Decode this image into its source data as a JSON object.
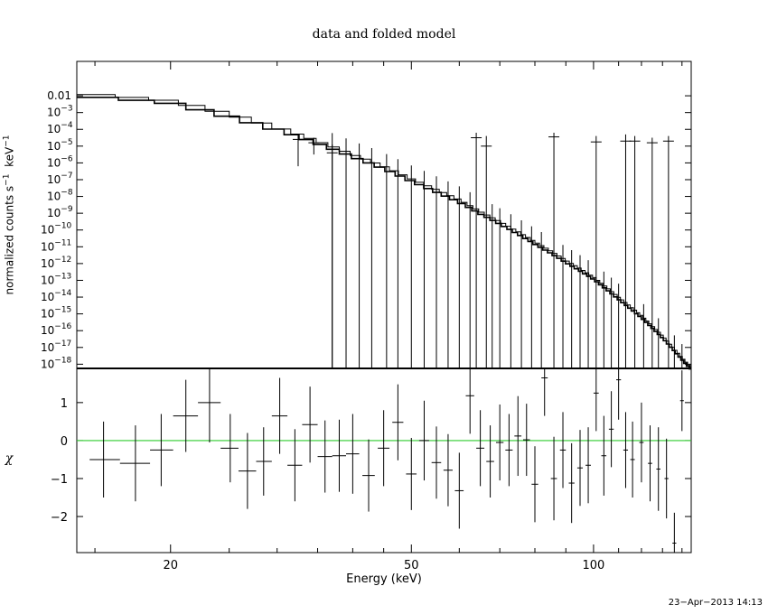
{
  "chart_data": [
    {
      "type": "line",
      "panel": "top",
      "title": "data and folded model",
      "ylabel_main": "normalized counts s",
      "ylabel_sup1": "−1",
      "ylabel_unit": "keV",
      "ylabel_sup2": "−1",
      "yscale": "log",
      "ylim_exp": [
        -18.25,
        0.05
      ],
      "xlim": [
        14.0,
        145.0
      ],
      "xscale": "log",
      "y_ticks": [
        {
          "exp": -2,
          "label": "0.01",
          "sup": ""
        },
        {
          "exp": -3,
          "label": "10",
          "sup": "−3"
        },
        {
          "exp": -4,
          "label": "10",
          "sup": "−4"
        },
        {
          "exp": -5,
          "label": "10",
          "sup": "−5"
        },
        {
          "exp": -6,
          "label": "10",
          "sup": "−6"
        },
        {
          "exp": -7,
          "label": "10",
          "sup": "−7"
        },
        {
          "exp": -8,
          "label": "10",
          "sup": "−8"
        },
        {
          "exp": -9,
          "label": "10",
          "sup": "−9"
        },
        {
          "exp": -10,
          "label": "10",
          "sup": "−10"
        },
        {
          "exp": -11,
          "label": "10",
          "sup": "−11"
        },
        {
          "exp": -12,
          "label": "10",
          "sup": "−12"
        },
        {
          "exp": -13,
          "label": "10",
          "sup": "−13"
        },
        {
          "exp": -14,
          "label": "10",
          "sup": "−14"
        },
        {
          "exp": -15,
          "label": "10",
          "sup": "−15"
        },
        {
          "exp": -16,
          "label": "10",
          "sup": "−16"
        },
        {
          "exp": -17,
          "label": "10",
          "sup": "−17"
        },
        {
          "exp": -18,
          "label": "10",
          "sup": "−18"
        }
      ],
      "model_log10_counts": [
        [
          14.0,
          -1.85
        ],
        [
          20.0,
          -2.3
        ],
        [
          25.0,
          -3.1
        ],
        [
          30.0,
          -3.9
        ],
        [
          35.0,
          -4.7
        ],
        [
          40.0,
          -5.5
        ],
        [
          45.0,
          -6.2
        ],
        [
          50.0,
          -6.95
        ],
        [
          55.0,
          -7.6
        ],
        [
          60.0,
          -8.2
        ],
        [
          65.0,
          -8.9
        ],
        [
          70.0,
          -9.5
        ],
        [
          75.0,
          -10.1
        ],
        [
          80.0,
          -10.7
        ],
        [
          90.0,
          -11.8
        ],
        [
          100.0,
          -12.8
        ],
        [
          110.0,
          -14.0
        ],
        [
          120.0,
          -15.1
        ],
        [
          130.0,
          -16.3
        ],
        [
          140.0,
          -17.6
        ],
        [
          145.0,
          -18.2
        ]
      ],
      "data_points": [
        {
          "e": 32.5,
          "log_y": -4.6,
          "log_lo": -6.2,
          "log_hi": -4.3
        },
        {
          "e": 34.5,
          "log_y": -4.8,
          "log_lo": -5.5,
          "log_hi": -4.5
        },
        {
          "e": 37.0,
          "log_y": -5.4,
          "log_lo": -18.25,
          "log_hi": -4.9
        },
        {
          "e": 64.0,
          "log_y": -4.5,
          "log_lo": -18.25,
          "log_hi": -4.2
        },
        {
          "e": 66.5,
          "log_y": -5.0,
          "log_lo": -18.25,
          "log_hi": -4.4
        },
        {
          "e": 86.0,
          "log_y": -4.45,
          "log_lo": -18.25,
          "log_hi": -4.2
        },
        {
          "e": 101.0,
          "log_y": -4.75,
          "log_lo": -18.25,
          "log_hi": -4.4
        },
        {
          "e": 113.0,
          "log_y": -4.7,
          "log_lo": -18.25,
          "log_hi": -4.3
        },
        {
          "e": 117.0,
          "log_y": -4.7,
          "log_lo": -18.25,
          "log_hi": -4.4
        },
        {
          "e": 125.0,
          "log_y": -4.8,
          "log_lo": -18.25,
          "log_hi": -4.5
        },
        {
          "e": 133.0,
          "log_y": -4.7,
          "log_lo": -18.25,
          "log_hi": -4.4
        }
      ],
      "upper_limit_energies": [
        37,
        39,
        41,
        43,
        45.5,
        47.5,
        50,
        52.5,
        55,
        57.5,
        60,
        62.5,
        68,
        70,
        73,
        76,
        79,
        82,
        89,
        92,
        95,
        98,
        104,
        107,
        110,
        121,
        128,
        136,
        140
      ]
    },
    {
      "type": "scatter",
      "panel": "bottom",
      "ylabel": "χ",
      "xlabel": "Energy (keV)",
      "xscale": "log",
      "xlim": [
        14.0,
        145.0
      ],
      "ylim": [
        -2.95,
        1.9
      ],
      "y_ticks": [
        {
          "v": 1,
          "label": "1"
        },
        {
          "v": 0,
          "label": "0"
        },
        {
          "v": -1,
          "label": "−1"
        },
        {
          "v": -2,
          "label": "−2"
        }
      ],
      "x_ticks": [
        {
          "v": 20,
          "label": "20"
        },
        {
          "v": 50,
          "label": "50"
        },
        {
          "v": 100,
          "label": "100"
        }
      ],
      "zero_line_color": "#2ecc2e",
      "points": [
        {
          "e": 15.5,
          "lo": 14.7,
          "hi": 16.5,
          "y": -0.5,
          "err": 1.0
        },
        {
          "e": 17.5,
          "lo": 16.5,
          "hi": 18.5,
          "y": -0.6,
          "err": 1.0
        },
        {
          "e": 19.3,
          "lo": 18.5,
          "hi": 20.2,
          "y": -0.25,
          "err": 0.95
        },
        {
          "e": 21.2,
          "lo": 20.2,
          "hi": 22.2,
          "y": 0.65,
          "err": 0.95
        },
        {
          "e": 23.2,
          "lo": 22.2,
          "hi": 24.2,
          "y": 1.0,
          "err": 1.05
        },
        {
          "e": 25.1,
          "lo": 24.2,
          "hi": 25.9,
          "y": -0.2,
          "err": 0.9
        },
        {
          "e": 26.8,
          "lo": 25.9,
          "hi": 27.7,
          "y": -0.8,
          "err": 1.0
        },
        {
          "e": 28.5,
          "lo": 27.7,
          "hi": 29.4,
          "y": -0.55,
          "err": 0.9
        },
        {
          "e": 30.3,
          "lo": 29.4,
          "hi": 31.2,
          "y": 0.65,
          "err": 1.0
        },
        {
          "e": 32.1,
          "lo": 31.2,
          "hi": 33.0,
          "y": -0.65,
          "err": 0.95
        },
        {
          "e": 34.0,
          "lo": 33.0,
          "hi": 35.0,
          "y": 0.42,
          "err": 1.0
        },
        {
          "e": 36.0,
          "lo": 35.0,
          "hi": 37.0,
          "y": -0.42,
          "err": 0.95
        },
        {
          "e": 38.0,
          "lo": 37.0,
          "hi": 39.0,
          "y": -0.4,
          "err": 0.95
        },
        {
          "e": 40.0,
          "lo": 39.0,
          "hi": 41.0,
          "y": -0.35,
          "err": 1.05
        },
        {
          "e": 42.5,
          "lo": 41.5,
          "hi": 43.5,
          "y": -0.92,
          "err": 0.95
        },
        {
          "e": 45.0,
          "lo": 44.0,
          "hi": 46.0,
          "y": -0.2,
          "err": 1.0
        },
        {
          "e": 47.5,
          "lo": 46.5,
          "hi": 48.5,
          "y": 0.48,
          "err": 1.0
        },
        {
          "e": 50.0,
          "lo": 49.0,
          "hi": 51.0,
          "y": -0.88,
          "err": 0.95
        },
        {
          "e": 52.5,
          "lo": 51.5,
          "hi": 53.5,
          "y": 0.0,
          "err": 1.05
        },
        {
          "e": 55.0,
          "lo": 54.0,
          "hi": 56.0,
          "y": -0.58,
          "err": 0.95
        },
        {
          "e": 57.5,
          "lo": 56.5,
          "hi": 58.5,
          "y": -0.78,
          "err": 0.95
        },
        {
          "e": 60.0,
          "lo": 59.0,
          "hi": 61.0,
          "y": -1.32,
          "err": 1.0
        },
        {
          "e": 62.5,
          "lo": 61.5,
          "hi": 63.5,
          "y": 1.18,
          "err": 1.0
        },
        {
          "e": 65.0,
          "lo": 64.0,
          "hi": 66.0,
          "y": -0.2,
          "err": 1.0
        },
        {
          "e": 67.5,
          "lo": 66.5,
          "hi": 68.5,
          "y": -0.55,
          "err": 0.95
        },
        {
          "e": 70.0,
          "lo": 69.0,
          "hi": 71.0,
          "y": -0.05,
          "err": 1.0
        },
        {
          "e": 72.5,
          "lo": 71.5,
          "hi": 73.5,
          "y": -0.25,
          "err": 0.95
        },
        {
          "e": 75.0,
          "lo": 74.0,
          "hi": 76.0,
          "y": 0.12,
          "err": 1.05
        },
        {
          "e": 77.5,
          "lo": 76.5,
          "hi": 78.5,
          "y": 0.02,
          "err": 0.95
        },
        {
          "e": 80.0,
          "lo": 79.0,
          "hi": 81.0,
          "y": -1.15,
          "err": 1.0
        },
        {
          "e": 83.0,
          "lo": 82.0,
          "hi": 84.0,
          "y": 1.65,
          "err": 1.0
        },
        {
          "e": 86.0,
          "lo": 85.0,
          "hi": 87.0,
          "y": -1.0,
          "err": 1.1
        },
        {
          "e": 89.0,
          "lo": 88.0,
          "hi": 90.0,
          "y": -0.25,
          "err": 1.0
        },
        {
          "e": 92.0,
          "lo": 91.0,
          "hi": 93.0,
          "y": -1.12,
          "err": 1.05
        },
        {
          "e": 95.0,
          "lo": 94.0,
          "hi": 96.0,
          "y": -0.72,
          "err": 1.0
        },
        {
          "e": 98.0,
          "lo": 97.0,
          "hi": 99.0,
          "y": -0.65,
          "err": 1.0
        },
        {
          "e": 101.0,
          "lo": 100.0,
          "hi": 102.0,
          "y": 1.25,
          "err": 1.0
        },
        {
          "e": 104.0,
          "lo": 103.0,
          "hi": 105.0,
          "y": -0.4,
          "err": 1.05
        },
        {
          "e": 107.0,
          "lo": 106.0,
          "hi": 108.0,
          "y": 0.3,
          "err": 1.0
        },
        {
          "e": 110.0,
          "lo": 109.0,
          "hi": 111.0,
          "y": 1.6,
          "err": 1.05
        },
        {
          "e": 113.0,
          "lo": 112.0,
          "hi": 114.0,
          "y": -0.25,
          "err": 1.0
        },
        {
          "e": 116.0,
          "lo": 115.0,
          "hi": 117.0,
          "y": -0.5,
          "err": 1.0
        },
        {
          "e": 120.0,
          "lo": 119.0,
          "hi": 121.0,
          "y": -0.05,
          "err": 1.05
        },
        {
          "e": 124.0,
          "lo": 123.0,
          "hi": 125.0,
          "y": -0.6,
          "err": 1.0
        },
        {
          "e": 128.0,
          "lo": 127.0,
          "hi": 129.0,
          "y": -0.75,
          "err": 1.1
        },
        {
          "e": 132.0,
          "lo": 131.0,
          "hi": 133.0,
          "y": -1.0,
          "err": 1.05
        },
        {
          "e": 136.0,
          "lo": 135.0,
          "hi": 137.0,
          "y": -2.7,
          "err": 0.8
        },
        {
          "e": 140.0,
          "lo": 139.0,
          "hi": 141.0,
          "y": 1.05,
          "err": 0.8
        }
      ]
    }
  ],
  "timestamp": "23−Apr−2013 14:13"
}
